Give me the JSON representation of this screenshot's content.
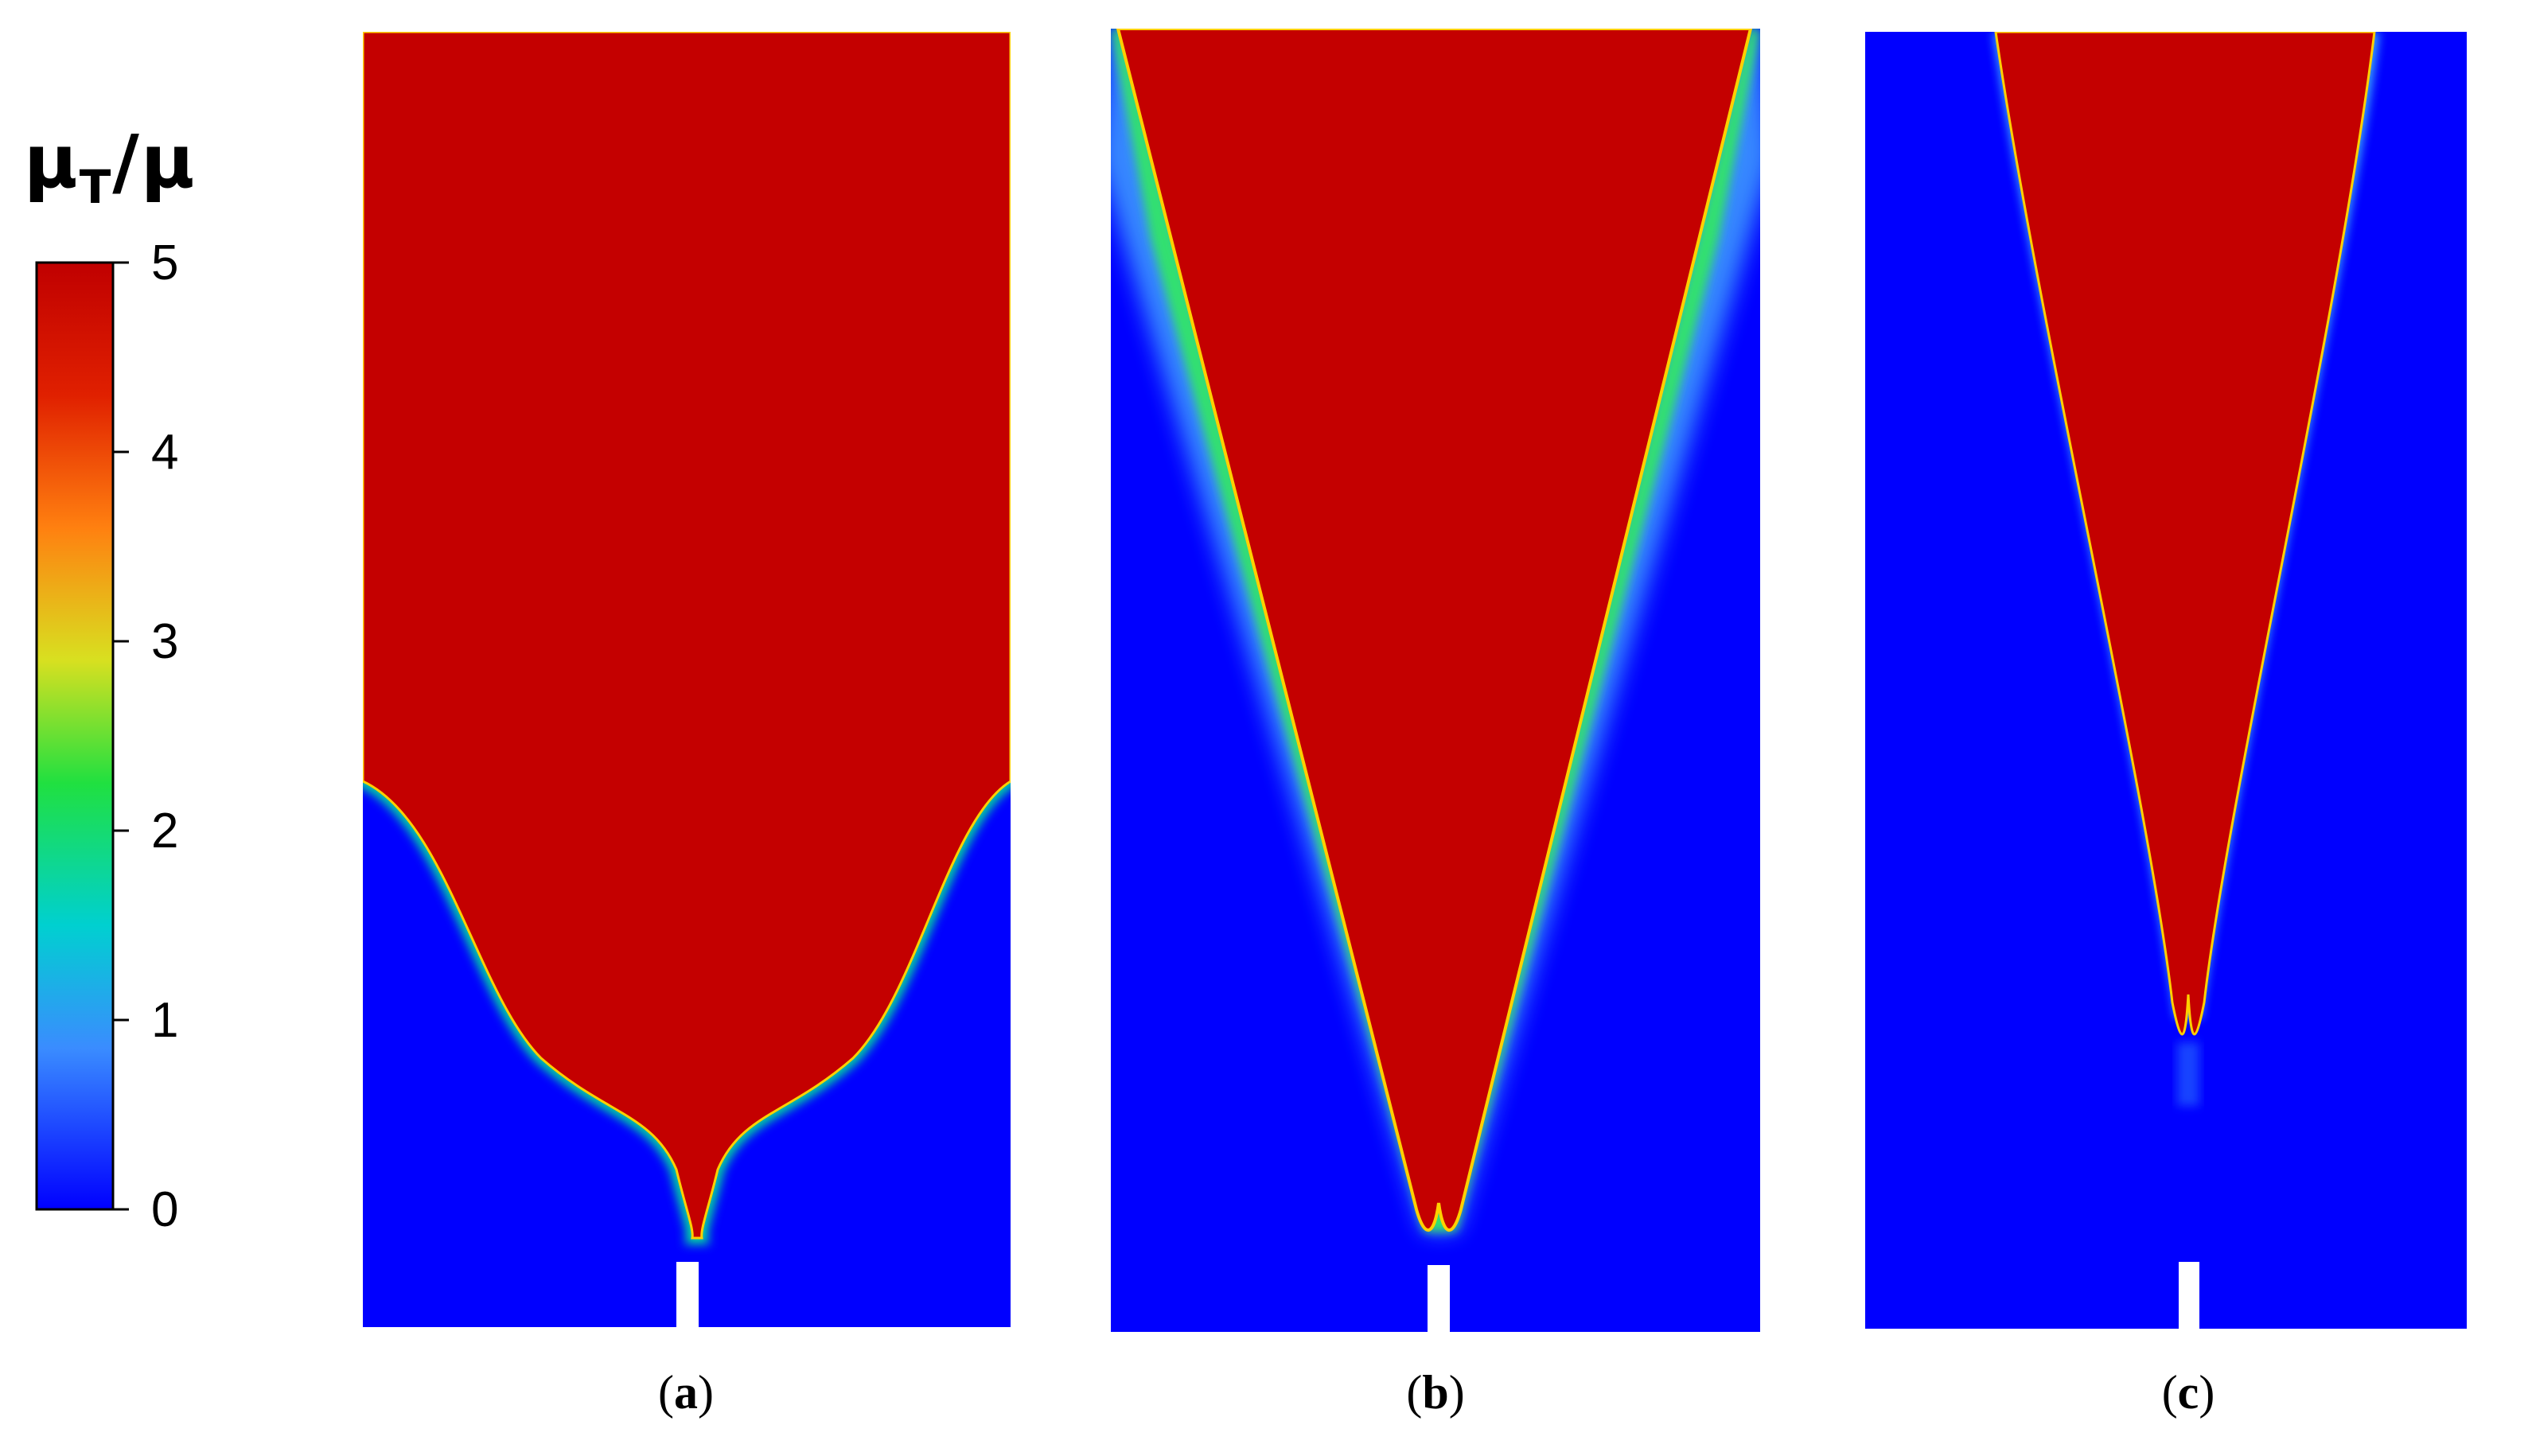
{
  "colorbar": {
    "title_main": "μ",
    "title_sub": "T",
    "title_tail": "/μ",
    "ticks": [
      "0",
      "1",
      "2",
      "3",
      "4",
      "5"
    ],
    "range": [
      0,
      5
    ],
    "colormap": [
      "#0000ff",
      "#00b4ff",
      "#00e070",
      "#c8e000",
      "#ff8000",
      "#e00000",
      "#c00000"
    ]
  },
  "panels": [
    {
      "label": "a",
      "description": "Wide bulb-shaped high-viscosity region above slot"
    },
    {
      "label": "b",
      "description": "Wedge-shaped region with diffuse edges"
    },
    {
      "label": "c",
      "description": "Narrow wedge region with sharp edges"
    }
  ],
  "colors": {
    "high": "#c40000",
    "low": "#0000ff",
    "slot": "#ffffff"
  }
}
